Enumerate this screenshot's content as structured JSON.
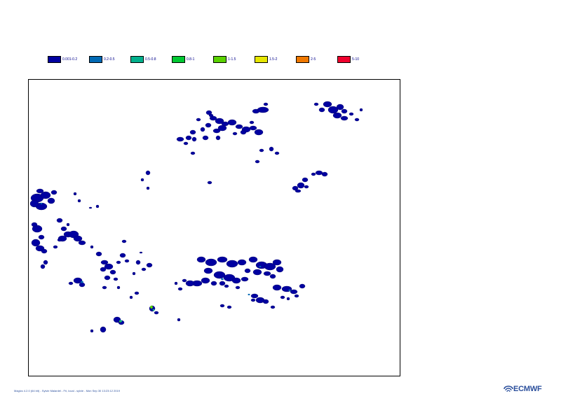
{
  "legend": {
    "items": [
      {
        "label": "0.001-0.2",
        "color": "#0000a0"
      },
      {
        "label": "0.2-0.5",
        "color": "#0069b4"
      },
      {
        "label": "0.5-0.8",
        "color": "#00b08c"
      },
      {
        "label": "0.8-1",
        "color": "#00c832"
      },
      {
        "label": "1-1.5",
        "color": "#5ad200"
      },
      {
        "label": "1.5-2",
        "color": "#e6e600"
      },
      {
        "label": "2-5",
        "color": "#f07800"
      },
      {
        "label": "5-10",
        "color": "#f0002d"
      }
    ]
  },
  "footer": {
    "text": "Magics 4.2.0 (64 bit) - Sylvie Malardel - Fri, local - sylvie - Mon Sep 30 13:23:12 2019",
    "logo_text": "ECMWF",
    "logo_icon": "ecmwf-logo-icon"
  }
}
